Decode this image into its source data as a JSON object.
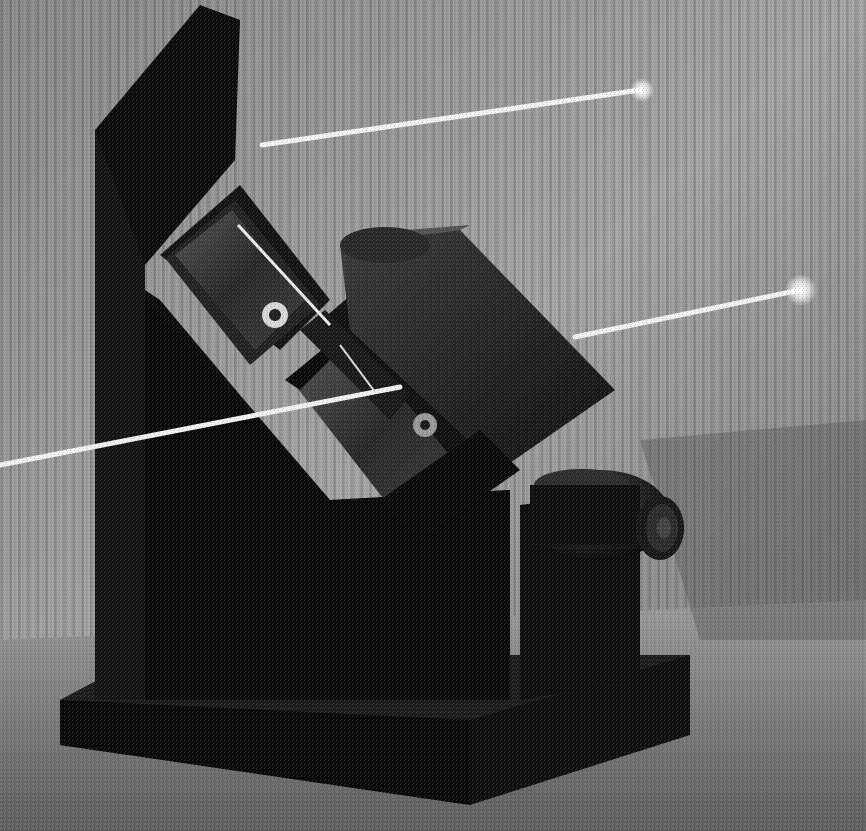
{
  "photo": {
    "subject": "optical-prism-mount-with-laser-beams",
    "palette": {
      "background_light": "#a9a9a9",
      "background_dark": "#6e6e6e",
      "stand": "#0d0d0d",
      "prism_glass": "#3a3a3a",
      "beam": "#f4f4f4",
      "knob": "#141414",
      "floor": "#8e8e8e"
    },
    "beams": [
      {
        "name": "upper-input-beam"
      },
      {
        "name": "right-output-beam"
      },
      {
        "name": "left-transmitted-beam"
      }
    ]
  }
}
